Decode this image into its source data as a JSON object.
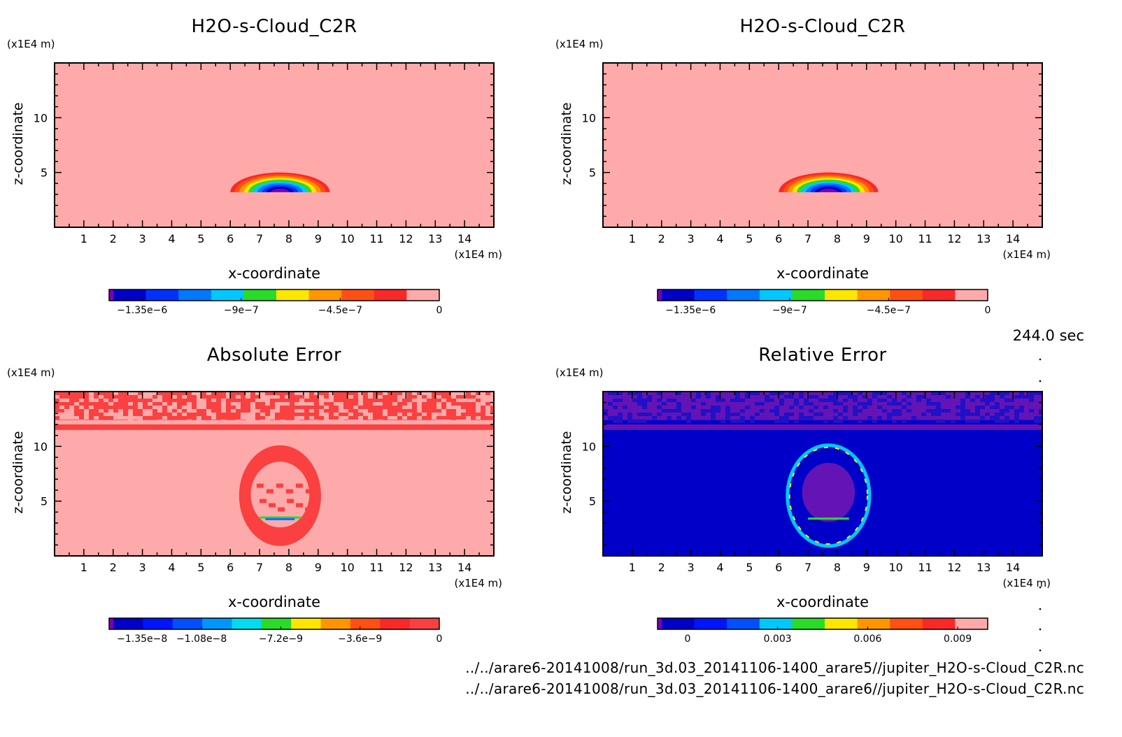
{
  "chart_data": [
    {
      "type": "heatmap",
      "title": "H2O-s-Cloud_C2R",
      "xlabel": "x-coordinate",
      "ylabel": "z-coordinate",
      "x_scale_label": "(x1E4 m)",
      "y_scale_label": "(x1E4 m)",
      "xlim": [
        0,
        15
      ],
      "ylim": [
        0,
        15
      ],
      "x_ticks": [
        1,
        2,
        3,
        4,
        5,
        6,
        7,
        8,
        9,
        10,
        11,
        12,
        13,
        14
      ],
      "y_ticks": [
        5,
        10
      ],
      "field": "cloud",
      "colorbar": {
        "min": -1.5e-06,
        "max": 0,
        "colors": [
          "#7b00b4",
          "#0000c8",
          "#0032ff",
          "#0078ff",
          "#00c8ff",
          "#28dc28",
          "#ffe600",
          "#ff9600",
          "#ff5014",
          "#fa2828",
          "#ffaaaa"
        ],
        "tick_values": [
          -1.35e-06,
          -9e-07,
          -4.5e-07,
          0
        ],
        "tick_labels": [
          "−1.35e−6",
          "−9e−7",
          "−4.5e−7",
          "0"
        ]
      }
    },
    {
      "type": "heatmap",
      "title": "H2O-s-Cloud_C2R",
      "xlabel": "x-coordinate",
      "ylabel": "z-coordinate",
      "x_scale_label": "(x1E4 m)",
      "y_scale_label": "(x1E4 m)",
      "xlim": [
        0,
        15
      ],
      "ylim": [
        0,
        15
      ],
      "x_ticks": [
        1,
        2,
        3,
        4,
        5,
        6,
        7,
        8,
        9,
        10,
        11,
        12,
        13,
        14
      ],
      "y_ticks": [
        5,
        10
      ],
      "field": "cloud",
      "colorbar": {
        "min": -1.5e-06,
        "max": 0,
        "colors": [
          "#7b00b4",
          "#0000c8",
          "#0032ff",
          "#0078ff",
          "#00c8ff",
          "#28dc28",
          "#ffe600",
          "#ff9600",
          "#ff5014",
          "#fa2828",
          "#ffaaaa"
        ],
        "tick_values": [
          -1.35e-06,
          -9e-07,
          -4.5e-07,
          0
        ],
        "tick_labels": [
          "−1.35e−6",
          "−9e−7",
          "−4.5e−7",
          "0"
        ]
      }
    },
    {
      "type": "heatmap",
      "title": "Absolute Error",
      "xlabel": "x-coordinate",
      "ylabel": "z-coordinate",
      "x_scale_label": "(x1E4 m)",
      "y_scale_label": "(x1E4 m)",
      "xlim": [
        0,
        15
      ],
      "ylim": [
        0,
        15
      ],
      "x_ticks": [
        1,
        2,
        3,
        4,
        5,
        6,
        7,
        8,
        9,
        10,
        11,
        12,
        13,
        14
      ],
      "y_ticks": [
        5,
        10
      ],
      "field": "abs_error",
      "colorbar": {
        "min": -1.5e-08,
        "max": 0,
        "colors": [
          "#7b00b4",
          "#0000c8",
          "#0014ff",
          "#0050ff",
          "#0096ff",
          "#00dcf0",
          "#28dc28",
          "#ffe600",
          "#ff9600",
          "#ff5014",
          "#fa2828",
          "#f84040"
        ],
        "tick_values": [
          -1.35e-08,
          -1.08e-08,
          -7.2e-09,
          -3.6e-09,
          0
        ],
        "tick_labels": [
          "−1.35e−8",
          "−1.08e−8",
          "−7.2e−9",
          "−3.6e−9",
          "0"
        ]
      }
    },
    {
      "type": "heatmap",
      "title": "Relative Error",
      "xlabel": "x-coordinate",
      "ylabel": "z-coordinate",
      "x_scale_label": "(x1E4 m)",
      "y_scale_label": "(x1E4 m)",
      "xlim": [
        0,
        15
      ],
      "ylim": [
        0,
        15
      ],
      "x_ticks": [
        1,
        2,
        3,
        4,
        5,
        6,
        7,
        8,
        9,
        10,
        11,
        12,
        13,
        14
      ],
      "y_ticks": [
        5,
        10
      ],
      "field": "rel_error",
      "colorbar": {
        "min": -0.001,
        "max": 0.01,
        "colors": [
          "#7b00b4",
          "#0000c8",
          "#0014ff",
          "#0050ff",
          "#00c8ff",
          "#28dc28",
          "#ffe600",
          "#ff9600",
          "#ff5014",
          "#fa2828",
          "#ffaaaa"
        ],
        "tick_values": [
          0,
          0.003,
          0.006,
          0.009
        ],
        "tick_labels": [
          "0",
          "0.003",
          "0.006",
          "0.009"
        ]
      }
    }
  ],
  "time_label": "244.0 sec",
  "files": [
    "../../arare6-20141008/run_3d.03_20141106-1400_arare5//jupiter_H2O-s-Cloud_C2R.nc",
    "../../arare6-20141008/run_3d.03_20141106-1400_arare6//jupiter_H2O-s-Cloud_C2R.nc"
  ]
}
